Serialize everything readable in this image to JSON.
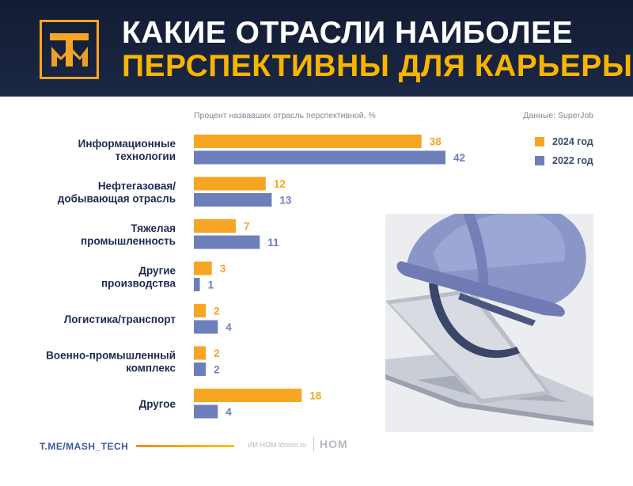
{
  "header": {
    "title_line1": "КАКИЕ ОТРАСЛИ НАИБОЛЕЕ",
    "title_line2": "ПЕРСПЕКТИВНЫ ДЛЯ КАРЬЕРЫ",
    "logo_text": "ТМ"
  },
  "subtitle": "Процент назвавших отрасль перспективной, %",
  "source": "Данные: SuperJob",
  "colors": {
    "header_bg": "#17213b",
    "accent_yellow": "#f7b500",
    "series_2024": "#f6a623",
    "series_2022": "#6c7fba",
    "category_text": "#1c2a4f"
  },
  "chart_data": {
    "type": "bar",
    "orientation": "horizontal",
    "categories": [
      [
        "Информационные",
        "технологии"
      ],
      [
        "Нефтегазовая/",
        "добывающая отрасль"
      ],
      [
        "Тяжелая",
        "промышленность"
      ],
      [
        "Другие",
        "производства"
      ],
      [
        "Логистика/транспорт"
      ],
      [
        "Военно-промышленный",
        "комплекс"
      ],
      [
        "Другое"
      ]
    ],
    "series": [
      {
        "name": "2024 год",
        "color": "#f6a623",
        "values": [
          38,
          12,
          7,
          3,
          2,
          2,
          18
        ]
      },
      {
        "name": "2022 год",
        "color": "#6c7fba",
        "values": [
          42,
          13,
          11,
          1,
          4,
          2,
          4
        ]
      }
    ],
    "xlim": [
      0,
      42
    ],
    "unit": "%",
    "grid": false,
    "legend": "top-right"
  },
  "footer": {
    "handle": "T.ME/MASH_TECH",
    "credit": "ИИ НОМ ldnom.ru",
    "brand": "НОМ"
  }
}
